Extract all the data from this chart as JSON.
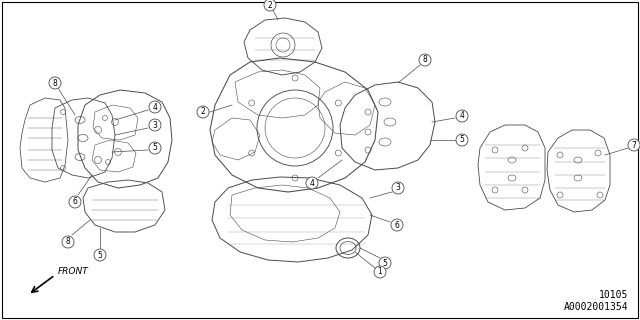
{
  "background_color": "#ffffff",
  "border_color": "#000000",
  "fig_width": 6.4,
  "fig_height": 3.2,
  "dpi": 100,
  "diagram_number": "10105",
  "part_number": "A0002001354",
  "front_label": "FRONT",
  "line_color": "#4a4a4a",
  "text_color": "#000000",
  "label_fontsize": 5.5,
  "ref_fontsize": 7.0
}
